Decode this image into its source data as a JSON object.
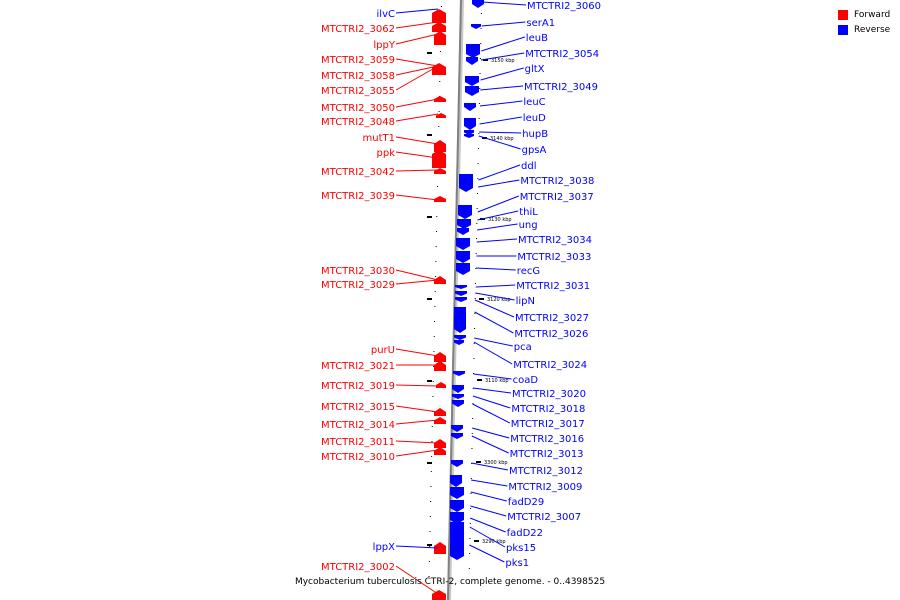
{
  "colors": {
    "forward": "#ff0000",
    "reverse": "#0000ff",
    "backbone": "#808080"
  },
  "legend": [
    {
      "label": "Forward",
      "color": "#ff0000"
    },
    {
      "label": "Reverse",
      "color": "#0000ff"
    }
  ],
  "caption": "Mycobacterium tuberculosis CTRI-2, complete genome. - 0..4398525",
  "ticks": [
    "3150 kbp",
    "3140 kbp",
    "3130 kbp",
    "3120 kbp",
    "3110 kbp",
    "3300 kbp",
    "3290 kbp"
  ],
  "forward_labels": [
    "ilvC",
    "MTCTRI2_3062",
    "lppY",
    "MTCTRI2_3059",
    "MTCTRI2_3058",
    "MTCTRI2_3055",
    "MTCTRI2_3050",
    "MTCTRI2_3048",
    "mutT1",
    "ppk",
    "MTCTRI2_3042",
    "MTCTRI2_3039",
    "MTCTRI2_3030",
    "MTCTRI2_3029",
    "purU",
    "MTCTRI2_3021",
    "MTCTRI2_3019",
    "MTCTRI2_3015",
    "MTCTRI2_3014",
    "MTCTRI2_3011",
    "MTCTRI2_3010",
    "lppX",
    "MTCTRI2_3002"
  ],
  "reverse_labels": [
    "MTCTRI2_3060",
    "serA1",
    "leuB",
    "MTCTRI2_3054",
    "gltX",
    "MTCTRI2_3049",
    "leuC",
    "leuD",
    "hupB",
    "gpsA",
    "ddl",
    "MTCTRI2_3038",
    "MTCTRI2_3037",
    "thiL",
    "ung",
    "MTCTRI2_3034",
    "MTCTRI2_3033",
    "recG",
    "MTCTRI2_3031",
    "lipN",
    "MTCTRI2_3027",
    "MTCTRI2_3026",
    "pca",
    "MTCTRI2_3024",
    "coaD",
    "MTCTRI2_3020",
    "MTCTRI2_3018",
    "MTCTRI2_3017",
    "MTCTRI2_3016",
    "MTCTRI2_3013",
    "MTCTRI2_3012",
    "MTCTRI2_3009",
    "fadD29",
    "MTCTRI2_3007",
    "fadD22",
    "pks15",
    "pks1"
  ]
}
